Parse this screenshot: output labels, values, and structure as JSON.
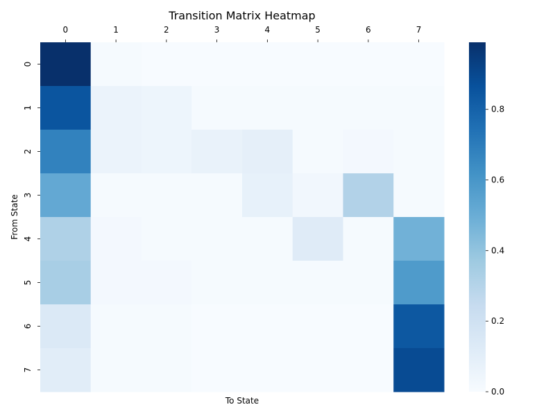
{
  "chart_data": {
    "type": "heatmap",
    "title": "Transition Matrix Heatmap",
    "xlabel": "To State",
    "ylabel": "From State",
    "x_categories": [
      "0",
      "1",
      "2",
      "3",
      "4",
      "5",
      "6",
      "7"
    ],
    "y_categories": [
      "0",
      "1",
      "2",
      "3",
      "4",
      "5",
      "6",
      "7"
    ],
    "x_axis_position": "top",
    "colormap": "Blues",
    "vmin": 0.0,
    "vmax": 0.99,
    "colorbar_ticks": [
      "0.0",
      "0.2",
      "0.4",
      "0.6",
      "0.8"
    ],
    "colorbar_tick_values": [
      0.0,
      0.2,
      0.4,
      0.6,
      0.8
    ],
    "values": [
      [
        0.99,
        0.01,
        0.0,
        0.0,
        0.0,
        0.0,
        0.0,
        0.0
      ],
      [
        0.85,
        0.06,
        0.05,
        0.01,
        0.01,
        0.01,
        0.01,
        0.01
      ],
      [
        0.68,
        0.06,
        0.05,
        0.07,
        0.09,
        0.01,
        0.02,
        0.01
      ],
      [
        0.52,
        0.01,
        0.01,
        0.01,
        0.08,
        0.03,
        0.31,
        0.01
      ],
      [
        0.32,
        0.02,
        0.01,
        0.01,
        0.01,
        0.12,
        0.01,
        0.48
      ],
      [
        0.34,
        0.02,
        0.02,
        0.01,
        0.01,
        0.01,
        0.01,
        0.58
      ],
      [
        0.14,
        0.01,
        0.01,
        0.0,
        0.0,
        0.0,
        0.0,
        0.84
      ],
      [
        0.11,
        0.01,
        0.01,
        0.0,
        0.0,
        0.0,
        0.0,
        0.89
      ]
    ]
  }
}
